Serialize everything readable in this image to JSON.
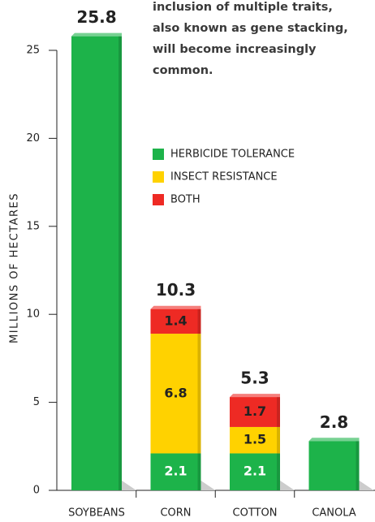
{
  "chart_data": {
    "type": "stacked_bar",
    "annotation": [
      "inclusion of multiple traits,",
      "also known as gene stacking,",
      "will become increasingly",
      "common."
    ],
    "y_label": "MILLIONS OF HECTARES",
    "categories": [
      "SOYBEANS",
      "CORN",
      "COTTON",
      "CANOLA"
    ],
    "series": [
      {
        "name": "HERBICIDE TOLERANCE",
        "color": "#1db34a",
        "label_color": "#ffffff",
        "values": [
          25.8,
          2.1,
          2.1,
          2.8
        ]
      },
      {
        "name": "INSECT RESISTANCE",
        "color": "#ffd200",
        "label_color": "#222222",
        "values": [
          null,
          6.8,
          1.5,
          null
        ]
      },
      {
        "name": "BOTH",
        "color": "#ee2a24",
        "label_color": "#222222",
        "values": [
          null,
          1.4,
          1.7,
          null
        ]
      }
    ],
    "totals": [
      25.8,
      10.3,
      5.3,
      2.8
    ],
    "ylim": [
      0,
      25
    ],
    "yticks": [
      0,
      5,
      10,
      15,
      20,
      25
    ]
  }
}
